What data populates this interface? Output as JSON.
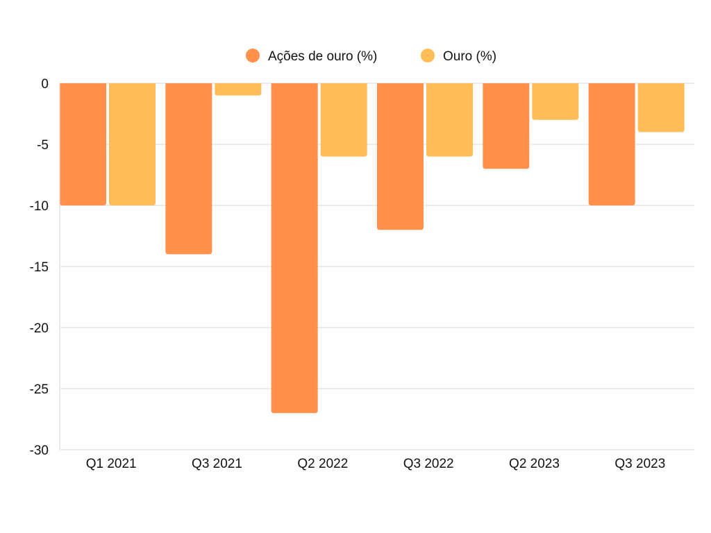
{
  "chart_data": {
    "type": "bar",
    "title": "",
    "xlabel": "",
    "ylabel": "",
    "ylim": [
      -30,
      0
    ],
    "yticks": [
      0,
      -5,
      -10,
      -15,
      -20,
      -25,
      -30
    ],
    "grid": true,
    "legend_position": "top-center",
    "categories": [
      "Q1 2021",
      "Q3 2021",
      "Q2 2022",
      "Q3 2022",
      "Q2 2023",
      "Q3 2023"
    ],
    "series": [
      {
        "name": "Ações de ouro (%)",
        "color": "#ff914d",
        "values": [
          -10,
          -14,
          -27,
          -12,
          -7,
          -10
        ]
      },
      {
        "name": "Ouro (%)",
        "color": "#ffbd59",
        "values": [
          -10,
          -1,
          -6,
          -6,
          -3,
          -4
        ]
      }
    ]
  }
}
